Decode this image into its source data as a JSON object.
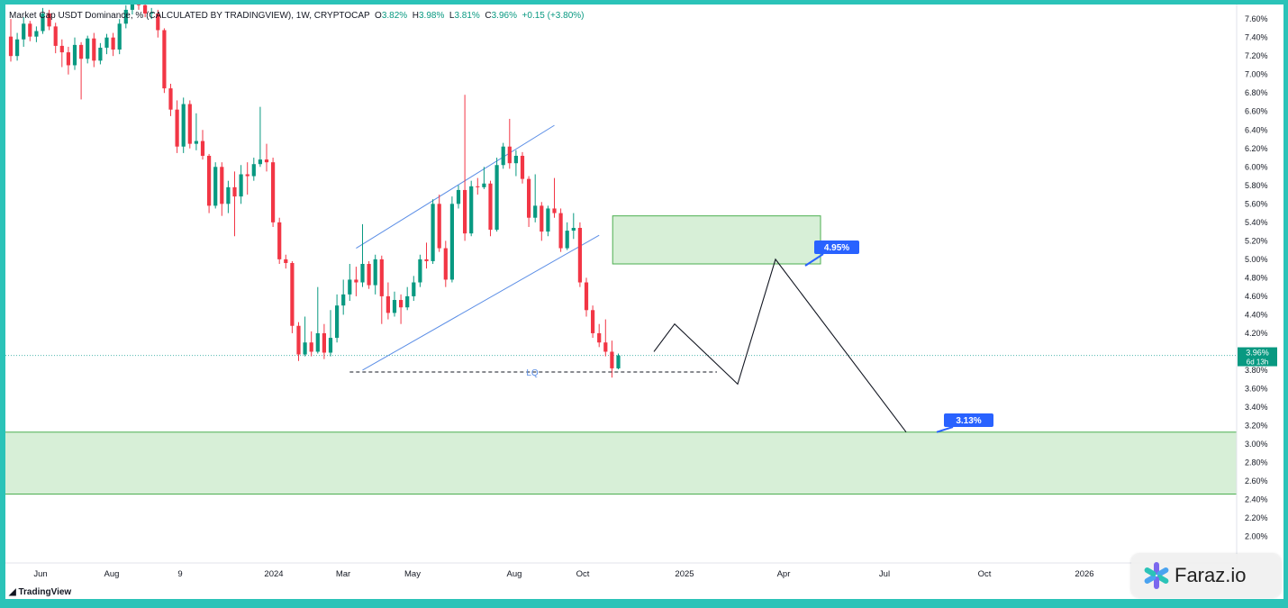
{
  "header": {
    "title": "Market Cap USDT Dominance, % (CALCULATED BY TRADINGVIEW), 1W, CRYPTOCAP",
    "o_label": "O",
    "o_value": "3.82%",
    "h_label": "H",
    "h_value": "3.98%",
    "l_label": "L",
    "l_value": "3.81%",
    "c_label": "C",
    "c_value": "3.96%",
    "change": "+0.15 (+3.80%)"
  },
  "branding": {
    "tradingview": "TradingView",
    "watermark": "Faraz.io"
  },
  "colors": {
    "up": "#089981",
    "down": "#f23645",
    "zone_fill": "#d7efd7",
    "zone_border": "#4caf50",
    "channel": "#5b8ee6",
    "badge": "#2962ff",
    "price_tag": "#089981"
  },
  "chart_data": {
    "type": "candlestick",
    "title": "Market Cap USDT Dominance, % (CALCULATED BY TRADINGVIEW), 1W, CRYPTOCAP",
    "y_unit": "%",
    "ylim": [
      1.86,
      7.66
    ],
    "yticks": [
      "7.60%",
      "7.40%",
      "7.20%",
      "7.00%",
      "6.80%",
      "6.60%",
      "6.40%",
      "6.20%",
      "6.00%",
      "5.80%",
      "5.60%",
      "5.40%",
      "5.20%",
      "5.00%",
      "4.80%",
      "4.60%",
      "4.40%",
      "4.20%",
      "3.80%",
      "3.60%",
      "3.40%",
      "3.20%",
      "3.00%",
      "2.80%",
      "2.60%",
      "2.40%",
      "2.20%",
      "2.00%"
    ],
    "xlabels": [
      "Jun",
      "Aug",
      "9",
      "2024",
      "Mar",
      "May",
      "Aug",
      "Oct",
      "2025",
      "Apr",
      "Jul",
      "Oct",
      "2026"
    ],
    "current_price": {
      "value": 3.96,
      "label": "3.96%",
      "countdown": "6d 13h"
    },
    "candles": [
      [
        7.41,
        7.2,
        7.6,
        7.14
      ],
      [
        7.2,
        7.38,
        7.45,
        7.15
      ],
      [
        7.38,
        7.55,
        7.62,
        7.3
      ],
      [
        7.55,
        7.41,
        7.58,
        7.36
      ],
      [
        7.41,
        7.47,
        7.52,
        7.35
      ],
      [
        7.47,
        7.66,
        7.72,
        7.44
      ],
      [
        7.66,
        7.52,
        7.7,
        7.48
      ],
      [
        7.52,
        7.31,
        7.56,
        7.23
      ],
      [
        7.31,
        7.24,
        7.38,
        7.08
      ],
      [
        7.24,
        7.1,
        7.3,
        7.0
      ],
      [
        7.1,
        7.32,
        7.4,
        7.05
      ],
      [
        7.32,
        7.17,
        7.35,
        6.73
      ],
      [
        7.17,
        7.39,
        7.42,
        7.12
      ],
      [
        7.39,
        7.15,
        7.45,
        7.08
      ],
      [
        7.15,
        7.29,
        7.34,
        7.11
      ],
      [
        7.29,
        7.4,
        7.44,
        7.22
      ],
      [
        7.4,
        7.27,
        7.45,
        7.2
      ],
      [
        7.27,
        7.55,
        7.6,
        7.22
      ],
      [
        7.55,
        7.7,
        7.75,
        7.5
      ],
      [
        7.7,
        7.85,
        7.9,
        7.65
      ],
      [
        7.85,
        7.75,
        7.95,
        7.7
      ],
      [
        7.75,
        7.66,
        7.82,
        7.62
      ],
      [
        7.66,
        7.67,
        7.72,
        7.6
      ],
      [
        7.66,
        7.48,
        7.7,
        7.4
      ],
      [
        7.48,
        6.85,
        7.5,
        6.8
      ],
      [
        6.85,
        6.62,
        6.9,
        6.55
      ],
      [
        6.62,
        6.22,
        6.72,
        6.15
      ],
      [
        6.22,
        6.68,
        6.75,
        6.15
      ],
      [
        6.68,
        6.25,
        6.72,
        6.2
      ],
      [
        6.25,
        6.28,
        6.58,
        6.18
      ],
      [
        6.28,
        6.12,
        6.4,
        6.08
      ],
      [
        6.12,
        5.58,
        6.14,
        5.5
      ],
      [
        5.58,
        6.0,
        6.05,
        5.55
      ],
      [
        6.0,
        5.6,
        6.05,
        5.47
      ],
      [
        5.6,
        5.78,
        5.85,
        5.5
      ],
      [
        5.78,
        5.68,
        5.95,
        5.25
      ],
      [
        5.68,
        5.92,
        6.02,
        5.6
      ],
      [
        5.92,
        5.9,
        6.05,
        5.7
      ],
      [
        5.9,
        6.03,
        6.1,
        5.85
      ],
      [
        6.03,
        6.08,
        6.65,
        6.0
      ],
      [
        6.08,
        6.05,
        6.25,
        5.95
      ],
      [
        6.05,
        5.4,
        6.1,
        5.35
      ],
      [
        5.4,
        5.0,
        5.45,
        4.95
      ],
      [
        5.0,
        4.96,
        5.05,
        4.9
      ],
      [
        4.96,
        4.28,
        4.98,
        4.2
      ],
      [
        4.28,
        3.97,
        4.32,
        3.9
      ],
      [
        3.97,
        4.1,
        4.38,
        3.95
      ],
      [
        4.1,
        4.0,
        4.22,
        3.95
      ],
      [
        4.0,
        4.2,
        4.7,
        3.98
      ],
      [
        4.2,
        3.99,
        4.3,
        3.92
      ],
      [
        3.99,
        4.15,
        4.45,
        3.95
      ],
      [
        4.15,
        4.5,
        4.62,
        4.1
      ],
      [
        4.5,
        4.62,
        4.78,
        4.4
      ],
      [
        4.62,
        4.78,
        4.95,
        4.55
      ],
      [
        4.78,
        4.75,
        4.92,
        4.6
      ],
      [
        4.75,
        4.95,
        5.38,
        4.7
      ],
      [
        4.95,
        4.72,
        4.98,
        4.68
      ],
      [
        4.72,
        5.0,
        5.05,
        4.62
      ],
      [
        5.0,
        4.6,
        5.04,
        4.3
      ],
      [
        4.6,
        4.42,
        4.75,
        4.35
      ],
      [
        4.42,
        4.56,
        4.65,
        4.38
      ],
      [
        4.56,
        4.48,
        4.62,
        4.3
      ],
      [
        4.48,
        4.6,
        4.7,
        4.45
      ],
      [
        4.6,
        4.75,
        4.82,
        4.55
      ],
      [
        4.75,
        5.0,
        5.05,
        4.7
      ],
      [
        5.0,
        4.98,
        5.18,
        4.9
      ],
      [
        4.98,
        5.6,
        5.65,
        4.95
      ],
      [
        5.6,
        5.12,
        5.7,
        5.08
      ],
      [
        5.12,
        4.78,
        5.2,
        4.7
      ],
      [
        4.78,
        5.6,
        5.68,
        4.75
      ],
      [
        5.6,
        5.75,
        5.8,
        5.55
      ],
      [
        5.75,
        5.28,
        6.78,
        5.2
      ],
      [
        5.28,
        5.79,
        5.85,
        5.25
      ],
      [
        5.79,
        5.78,
        5.88,
        5.7
      ],
      [
        5.78,
        5.82,
        6.0,
        5.76
      ],
      [
        5.82,
        5.32,
        5.85,
        5.25
      ],
      [
        5.32,
        6.02,
        6.1,
        5.3
      ],
      [
        6.02,
        6.22,
        6.26,
        5.98
      ],
      [
        6.22,
        6.04,
        6.52,
        5.98
      ],
      [
        6.04,
        6.12,
        6.18,
        5.9
      ],
      [
        6.12,
        5.87,
        6.16,
        5.82
      ],
      [
        5.87,
        5.45,
        5.9,
        5.35
      ],
      [
        5.45,
        5.58,
        5.92,
        5.4
      ],
      [
        5.58,
        5.3,
        5.62,
        5.2
      ],
      [
        5.3,
        5.55,
        5.58,
        5.25
      ],
      [
        5.55,
        5.5,
        5.88,
        5.45
      ],
      [
        5.5,
        5.12,
        5.55,
        5.08
      ],
      [
        5.12,
        5.31,
        5.4,
        5.1
      ],
      [
        5.31,
        5.34,
        5.5,
        5.22
      ],
      [
        5.34,
        4.75,
        5.4,
        4.7
      ],
      [
        4.75,
        4.45,
        4.8,
        4.38
      ],
      [
        4.45,
        4.2,
        4.5,
        4.15
      ],
      [
        4.2,
        4.1,
        4.3,
        4.05
      ],
      [
        4.1,
        4.0,
        4.35,
        3.95
      ],
      [
        4.0,
        3.82,
        4.12,
        3.72
      ],
      [
        3.82,
        3.96,
        3.98,
        3.81
      ]
    ],
    "annotations": {
      "lq_label": "LQ",
      "lq_level": 3.78,
      "upper_zone": {
        "top": 5.47,
        "bottom": 4.95
      },
      "lower_zone": {
        "top": 3.13,
        "bottom": 2.46
      },
      "label_upper": "4.95%",
      "label_lower": "3.13%",
      "projection": [
        [
          4.0,
          4.0
        ],
        [
          4.3,
          4.3
        ],
        [
          3.65,
          3.65
        ],
        [
          5.0,
          5.0
        ],
        [
          3.13,
          3.13
        ]
      ]
    }
  }
}
